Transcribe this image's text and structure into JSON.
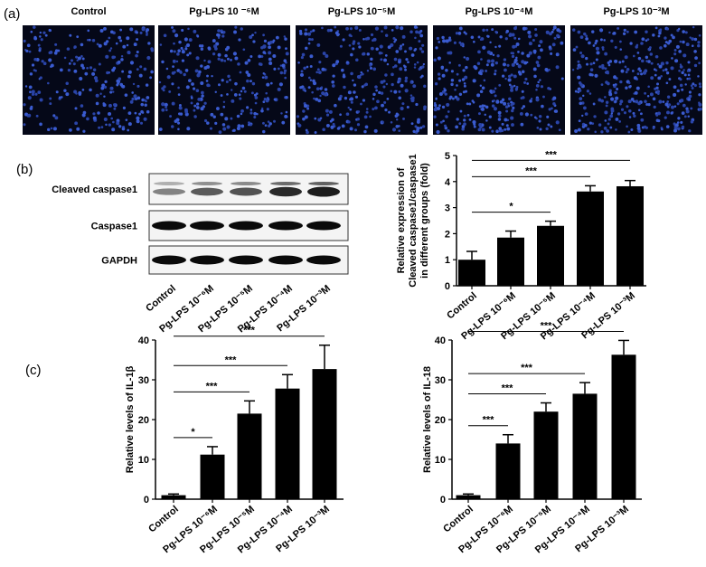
{
  "panel_labels": [
    "(a)",
    "(b)",
    "(c)"
  ],
  "images": {
    "labels": [
      "Control",
      "Pg-LPS 10 ⁻⁶M",
      "Pg-LPS 10⁻⁵M",
      "Pg-LPS 10⁻⁴M",
      "Pg-LPS 10⁻³M"
    ]
  },
  "blot": {
    "rows": [
      "Cleaved caspase1",
      "Caspase1",
      "GAPDH"
    ],
    "lanes": [
      "Control",
      "Pg-LPS 10⁻⁶M",
      "Pg-LPS 10⁻⁵M",
      "Pg-LPS 10⁻⁴M",
      "Pg-LPS 10⁻³M"
    ]
  },
  "chart_data": [
    {
      "type": "bar",
      "ylabel": [
        "Relative expression of",
        "Cleaved caspase1/caspase1",
        "in different groups (fold)"
      ],
      "categories": [
        "Control",
        "Pg-LPS 10⁻⁶M",
        "Pg-LPS 10⁻⁵M",
        "Pg-LPS 10⁻⁴M",
        "Pg-LPS 10⁻³M"
      ],
      "values": [
        1.0,
        1.85,
        2.3,
        3.62,
        3.82
      ],
      "errors": [
        0.32,
        0.25,
        0.18,
        0.22,
        0.22
      ],
      "color": "#000000",
      "ylim": [
        0,
        5
      ],
      "yticks": [
        0,
        1,
        2,
        3,
        4,
        5
      ],
      "annotations": [
        {
          "from": 0,
          "to": 2,
          "label": "*"
        },
        {
          "from": 0,
          "to": 3,
          "label": "***"
        },
        {
          "from": 0,
          "to": 4,
          "label": "***"
        }
      ]
    },
    {
      "type": "bar",
      "ylabel": [
        "Relative levels of IL-1β"
      ],
      "categories": [
        "Control",
        "Pg-LPS 10⁻⁶M",
        "Pg-LPS 10⁻⁵M",
        "Pg-LPS 10⁻⁴M",
        "Pg-LPS 10⁻³M"
      ],
      "values": [
        1.0,
        11.2,
        21.5,
        27.8,
        32.7
      ],
      "errors": [
        0.3,
        2.0,
        3.2,
        3.5,
        6.0
      ],
      "color": "#000000",
      "ylim": [
        0,
        40
      ],
      "yticks": [
        0,
        10,
        20,
        30,
        40
      ],
      "annotations": [
        {
          "from": 0,
          "to": 1,
          "label": "*"
        },
        {
          "from": 0,
          "to": 2,
          "label": "***"
        },
        {
          "from": 0,
          "to": 3,
          "label": "***"
        },
        {
          "from": 0,
          "to": 4,
          "label": "***"
        }
      ]
    },
    {
      "type": "bar",
      "ylabel": [
        "Relative levels of IL-18"
      ],
      "categories": [
        "Control",
        "Pg-LPS 10⁻⁶M",
        "Pg-LPS 10⁻⁵M",
        "Pg-LPS 10⁻⁴M",
        "Pg-LPS 10⁻³M"
      ],
      "values": [
        1.0,
        14.0,
        22.0,
        26.5,
        36.3
      ],
      "errors": [
        0.3,
        2.2,
        2.2,
        2.8,
        3.6
      ],
      "color": "#000000",
      "ylim": [
        0,
        40
      ],
      "yticks": [
        0,
        10,
        20,
        30,
        40
      ],
      "annotations": [
        {
          "from": 0,
          "to": 1,
          "label": "***"
        },
        {
          "from": 0,
          "to": 2,
          "label": "***"
        },
        {
          "from": 0,
          "to": 3,
          "label": "***"
        },
        {
          "from": 0,
          "to": 4,
          "label": "***"
        }
      ]
    }
  ]
}
